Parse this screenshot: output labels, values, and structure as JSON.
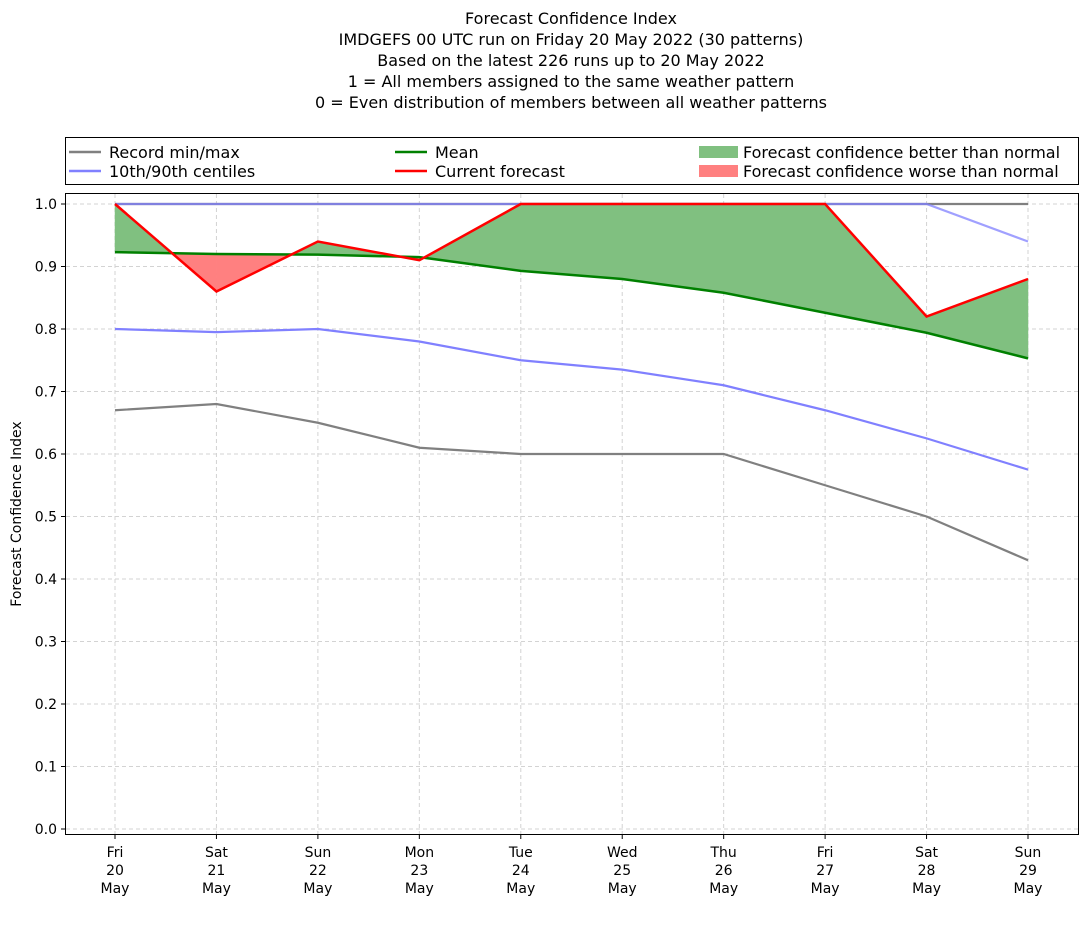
{
  "chart_data": {
    "type": "line",
    "title": [
      "Forecast Confidence Index",
      "IMDGEFS 00 UTC run on Friday 20 May 2022 (30 patterns)",
      "Based on the latest 226 runs up to 20 May 2022",
      "1 = All members assigned to the same weather pattern",
      "0 = Even distribution of members between all weather patterns"
    ],
    "ylabel": "Forecast Confidence Index",
    "xlabel": "",
    "categories": [
      [
        "Fri",
        "20",
        "May"
      ],
      [
        "Sat",
        "21",
        "May"
      ],
      [
        "Sun",
        "22",
        "May"
      ],
      [
        "Mon",
        "23",
        "May"
      ],
      [
        "Tue",
        "24",
        "May"
      ],
      [
        "Wed",
        "25",
        "May"
      ],
      [
        "Thu",
        "26",
        "May"
      ],
      [
        "Fri",
        "27",
        "May"
      ],
      [
        "Sat",
        "28",
        "May"
      ],
      [
        "Sun",
        "29",
        "May"
      ]
    ],
    "yticks": [
      "0.0",
      "0.1",
      "0.2",
      "0.3",
      "0.4",
      "0.5",
      "0.6",
      "0.7",
      "0.8",
      "0.9",
      "1.0"
    ],
    "ylim": [
      -0.01,
      1.018
    ],
    "grid": true,
    "legend_placement": "top, above plot",
    "series": {
      "record_min": {
        "name": "Record min/max",
        "color": "#808080",
        "values": [
          0.67,
          0.68,
          0.65,
          0.61,
          0.6,
          0.6,
          0.6,
          0.55,
          0.5,
          0.43
        ]
      },
      "record_max": {
        "name": "Record min/max",
        "color": "#808080",
        "values": [
          1.0,
          1.0,
          1.0,
          1.0,
          1.0,
          1.0,
          1.0,
          1.0,
          1.0,
          1.0
        ]
      },
      "p10": {
        "name": "10th/90th centiles",
        "color": "#8080ff",
        "values": [
          0.8,
          0.795,
          0.8,
          0.78,
          0.75,
          0.735,
          0.71,
          0.67,
          0.625,
          0.575
        ]
      },
      "p90": {
        "name": "10th/90th centiles",
        "color": "#8080ff",
        "values": [
          1.0,
          1.0,
          1.0,
          1.0,
          1.0,
          1.0,
          1.0,
          1.0,
          1.0,
          0.94
        ]
      },
      "mean": {
        "name": "Mean",
        "color": "#008000",
        "values": [
          0.923,
          0.92,
          0.919,
          0.915,
          0.893,
          0.88,
          0.858,
          0.826,
          0.794,
          0.753
        ]
      },
      "current": {
        "name": "Current forecast",
        "color": "#ff0000",
        "values": [
          1.0,
          0.86,
          0.94,
          0.91,
          1.0,
          1.0,
          1.0,
          1.0,
          0.82,
          0.88
        ]
      }
    },
    "fills": {
      "better": {
        "name": "Forecast confidence better than normal",
        "color": "#80c080"
      },
      "worse": {
        "name": "Forecast confidence worse than normal",
        "color": "#ff8080"
      }
    }
  }
}
